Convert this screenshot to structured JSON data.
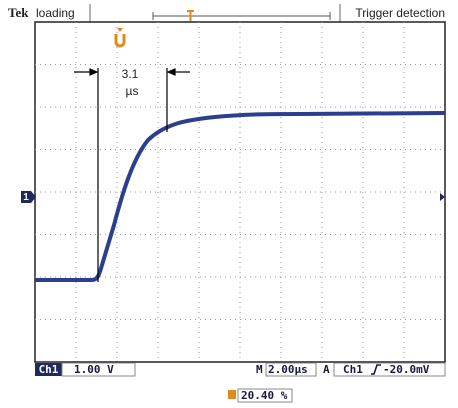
{
  "header": {
    "brand": "Tek",
    "status": "loading",
    "mode": "Trigger detection"
  },
  "annotation": {
    "value": "3.1",
    "unit": "µs"
  },
  "channel_marker": "1",
  "status_bar": {
    "channel": "Ch1",
    "volts_per_div": "1.00 V",
    "time_label": "M",
    "time_per_div": "2.00µs",
    "trigger_mode": "A",
    "trigger_channel": "Ch1",
    "trigger_level": "-20.0mV"
  },
  "trigger_position": "20.40 %"
}
